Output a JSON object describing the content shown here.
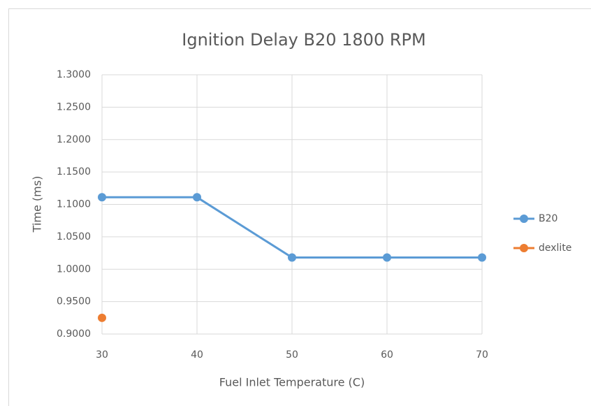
{
  "chart_data": {
    "type": "line",
    "title": "Ignition Delay B20 1800 RPM",
    "x_label": "Fuel Inlet Temperature (C)",
    "y_label": "Time (ms)",
    "x": [
      30,
      40,
      50,
      60,
      70
    ],
    "series": [
      {
        "name": "B20",
        "color": "#5b9bd5",
        "values": [
          1.111,
          1.111,
          1.018,
          1.018,
          1.018
        ]
      },
      {
        "name": "dexlite",
        "color": "#ed7d31",
        "values": [
          0.925,
          null,
          null,
          null,
          null
        ]
      }
    ],
    "xlim": [
      30,
      70
    ],
    "xticks": [
      30,
      40,
      50,
      60,
      70
    ],
    "ylim": [
      0.9,
      1.3
    ],
    "yticks": [
      {
        "value": 0.9,
        "label": "0.9000"
      },
      {
        "value": 0.95,
        "label": "0.9500"
      },
      {
        "value": 1.0,
        "label": "1.0000"
      },
      {
        "value": 1.05,
        "label": "1.0500"
      },
      {
        "value": 1.1,
        "label": "1.1000"
      },
      {
        "value": 1.15,
        "label": "1.1500"
      },
      {
        "value": 1.2,
        "label": "1.2000"
      },
      {
        "value": 1.25,
        "label": "1.2500"
      },
      {
        "value": 1.3,
        "label": "1.3000"
      }
    ],
    "grid": true,
    "legend": "right"
  }
}
